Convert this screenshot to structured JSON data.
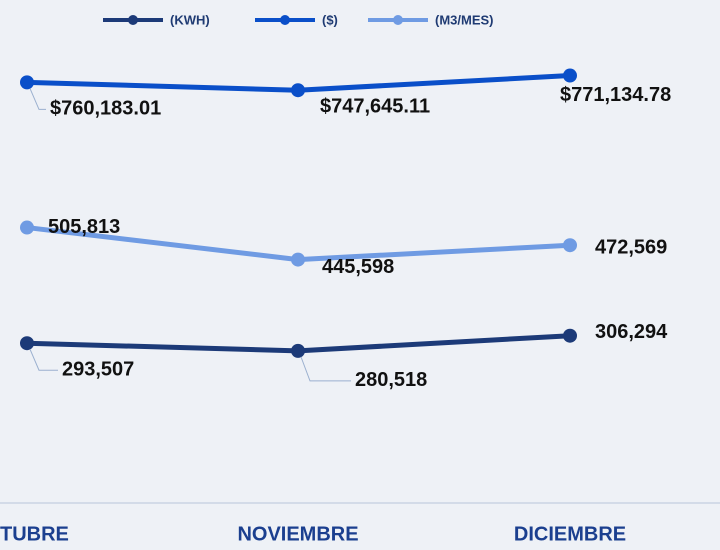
{
  "chart_data": {
    "type": "line",
    "categories": [
      "TUBRE",
      "NOVIEMBRE",
      "DICIEMBRE"
    ],
    "series": [
      {
        "name": "(KWH)",
        "color": "#1c3a78",
        "values": [
          293507,
          280518,
          306294
        ],
        "value_labels": [
          "293,507",
          "280,518",
          "306,294"
        ],
        "ylim": [
          78000,
          843000
        ]
      },
      {
        "name": "($)",
        "color": "#0a4fc9",
        "values": [
          760183.01,
          747645.11,
          771134.78
        ],
        "value_labels": [
          "$760,183.01",
          "$747,645.11",
          "$771,134.78"
        ],
        "ylim": [
          140000,
          860000
        ]
      },
      {
        "name": "(M3/MES)",
        "color": "#6f9be3",
        "values": [
          505813,
          445598,
          472569
        ],
        "value_labels": [
          "505,813",
          "445,598",
          "472,569"
        ],
        "ylim": [
          50000,
          896000
        ]
      }
    ],
    "legend": "top"
  }
}
